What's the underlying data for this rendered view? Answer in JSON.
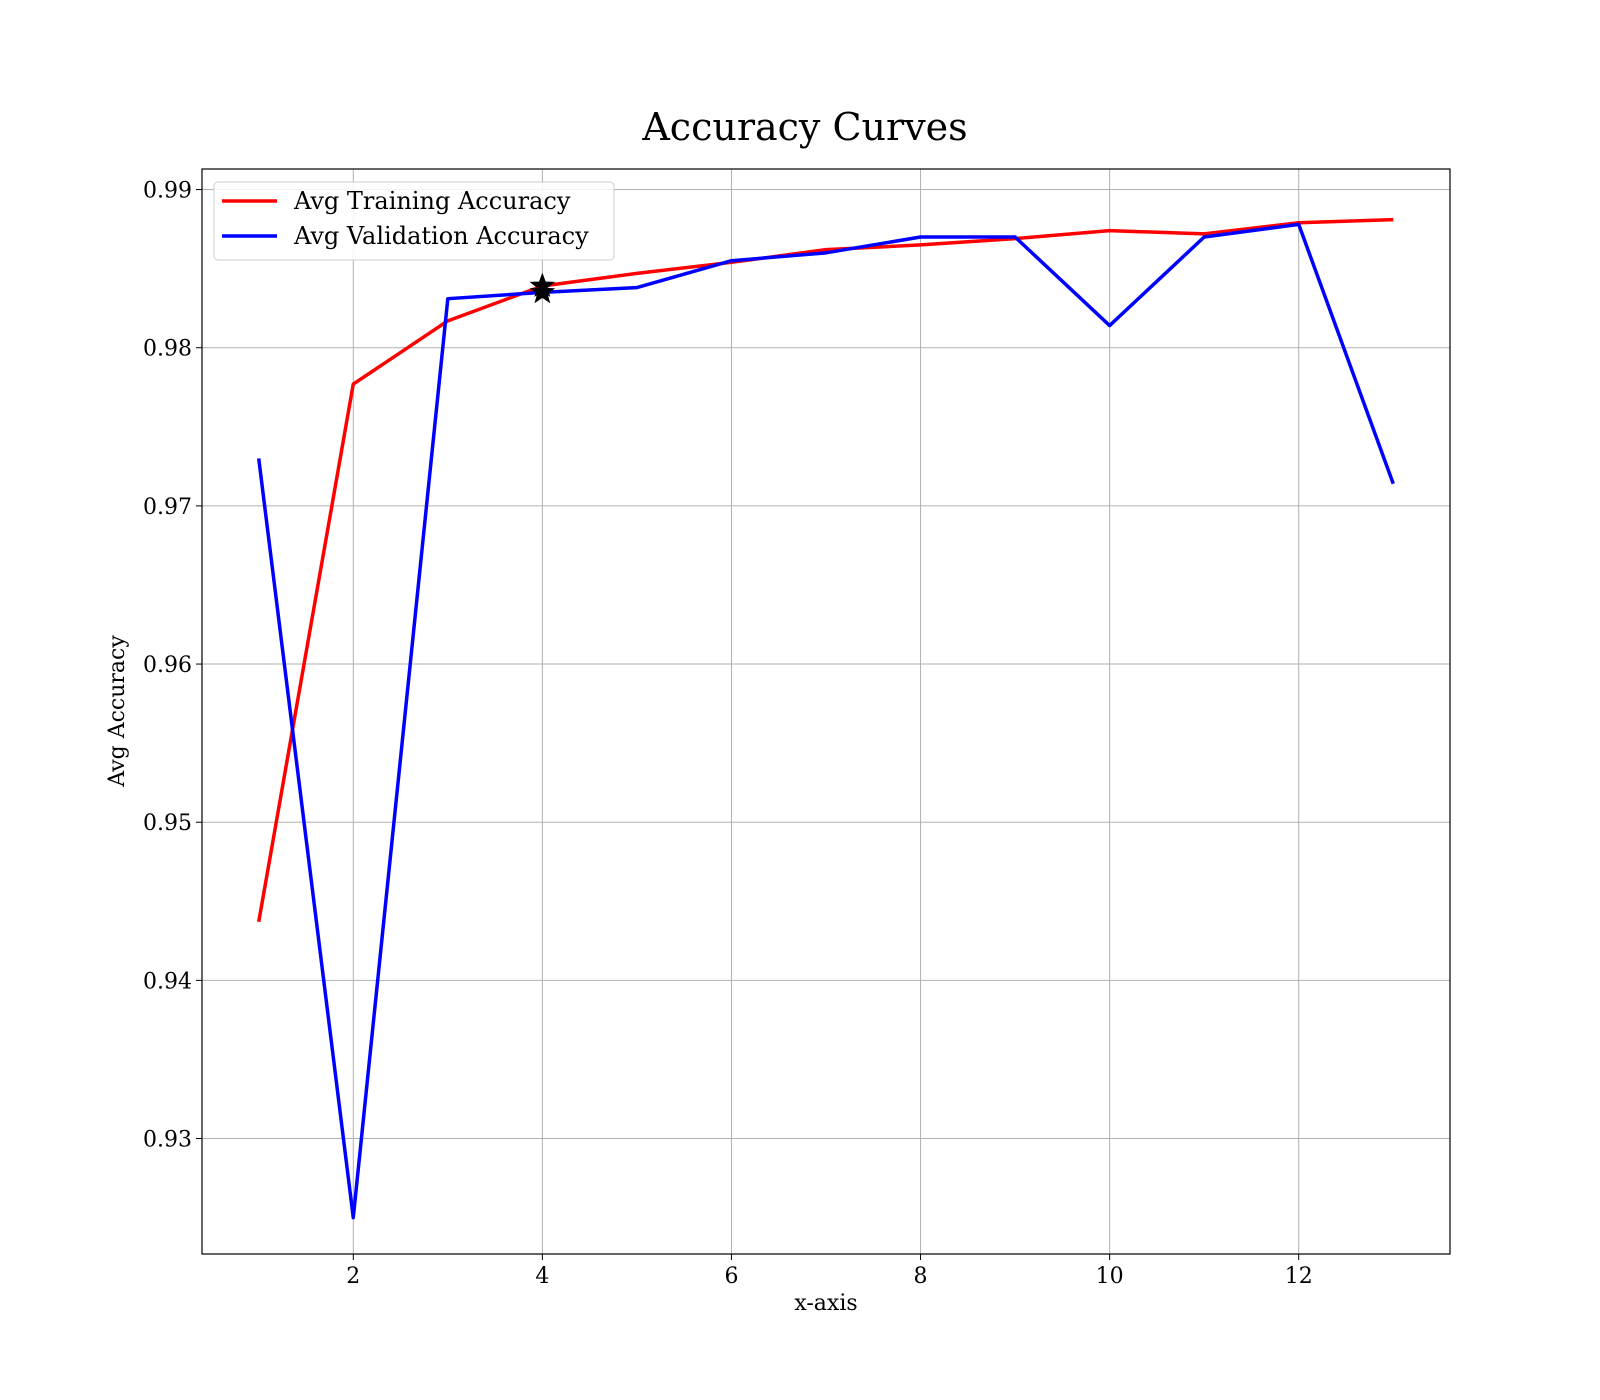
{
  "chart_data": {
    "type": "line",
    "title": "Accuracy Curves",
    "xlabel": "x-axis",
    "ylabel": "Avg Accuracy",
    "xlim": [
      0.4,
      13.6
    ],
    "ylim": [
      0.9227,
      0.9913
    ],
    "xticks": [
      2,
      4,
      6,
      8,
      10,
      12
    ],
    "yticks": [
      0.93,
      0.94,
      0.95,
      0.96,
      0.97,
      0.98,
      0.99
    ],
    "grid": true,
    "legend_position": "top-left",
    "x": [
      1,
      2,
      3,
      4,
      5,
      6,
      7,
      8,
      9,
      10,
      11,
      12,
      13
    ],
    "series": [
      {
        "name": "Avg Training Accuracy",
        "color": "#ff0000",
        "values": [
          0.9437,
          0.9777,
          0.9817,
          0.9839,
          0.9847,
          0.9854,
          0.9862,
          0.9865,
          0.9869,
          0.9874,
          0.9872,
          0.9879,
          0.9881
        ]
      },
      {
        "name": "Avg Validation Accuracy",
        "color": "#0000ff",
        "values": [
          0.973,
          0.925,
          0.9831,
          0.9835,
          0.9838,
          0.9855,
          0.986,
          0.987,
          0.987,
          0.9814,
          0.987,
          0.9878,
          0.9714
        ]
      }
    ],
    "markers": [
      {
        "x": 4,
        "y": 0.9839,
        "shape": "star",
        "color": "#000000"
      },
      {
        "x": 4,
        "y": 0.9835,
        "shape": "star",
        "color": "#000000"
      }
    ]
  }
}
